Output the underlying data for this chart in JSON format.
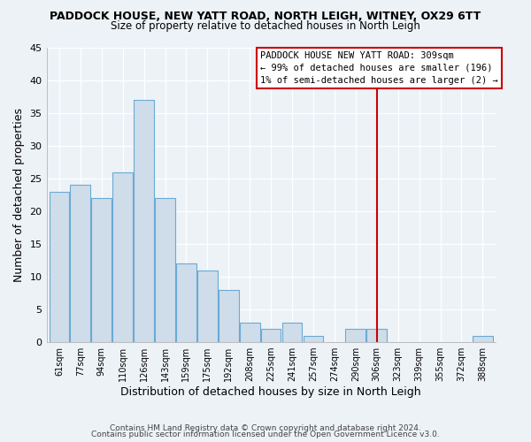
{
  "title": "PADDOCK HOUSE, NEW YATT ROAD, NORTH LEIGH, WITNEY, OX29 6TT",
  "subtitle": "Size of property relative to detached houses in North Leigh",
  "xlabel": "Distribution of detached houses by size in North Leigh",
  "ylabel": "Number of detached properties",
  "bar_color": "#cfdcea",
  "bar_edge_color": "#6aaad4",
  "bin_labels": [
    "61sqm",
    "77sqm",
    "94sqm",
    "110sqm",
    "126sqm",
    "143sqm",
    "159sqm",
    "175sqm",
    "192sqm",
    "208sqm",
    "225sqm",
    "241sqm",
    "257sqm",
    "274sqm",
    "290sqm",
    "306sqm",
    "323sqm",
    "339sqm",
    "355sqm",
    "372sqm",
    "388sqm"
  ],
  "bar_heights": [
    23,
    24,
    22,
    26,
    37,
    22,
    12,
    11,
    8,
    3,
    2,
    3,
    1,
    0,
    2,
    2,
    0,
    0,
    0,
    0,
    1
  ],
  "vline_idx": 15,
  "vline_color": "#cc0000",
  "annotation_lines": [
    "PADDOCK HOUSE NEW YATT ROAD: 309sqm",
    "← 99% of detached houses are smaller (196)",
    "1% of semi-detached houses are larger (2) →"
  ],
  "ylim": [
    0,
    45
  ],
  "yticks": [
    0,
    5,
    10,
    15,
    20,
    25,
    30,
    35,
    40,
    45
  ],
  "footnote1": "Contains HM Land Registry data © Crown copyright and database right 2024.",
  "footnote2": "Contains public sector information licensed under the Open Government Licence v3.0.",
  "bg_color": "#edf2f7",
  "grid_color": "#ffffff"
}
